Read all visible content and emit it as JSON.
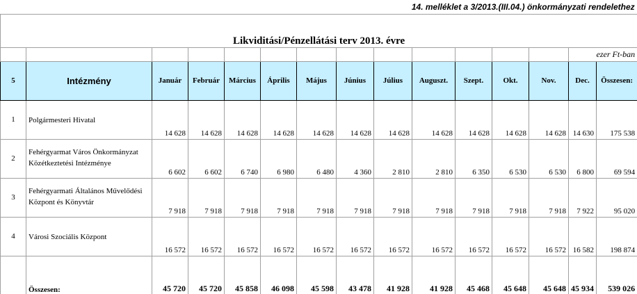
{
  "annex_note": "14. melléklet a 3/2013.(III.04.) önkormányzati rendelethez",
  "title": "Likviditási/Pénzellátási terv 2013. évre",
  "unit": "ezer Ft-ban",
  "header": {
    "index": "5",
    "institution": "Intézmény",
    "months": [
      "Január",
      "Február",
      "Március",
      "Április",
      "Május",
      "Június",
      "Július",
      "Auguszt.",
      "Szept.",
      "Okt.",
      "Nov.",
      "Dec."
    ],
    "total": "Összesen:"
  },
  "rows": [
    {
      "index": "1",
      "name": "Polgármesteri Hivatal",
      "values": [
        "14 628",
        "14 628",
        "14 628",
        "14 628",
        "14 628",
        "14 628",
        "14 628",
        "14 628",
        "14 628",
        "14 628",
        "14 628",
        "14 630"
      ],
      "total": "175 538"
    },
    {
      "index": "2",
      "name": "Fehérgyarmat Város Önkormányzat Közétkeztetési Intézménye",
      "values": [
        "6 602",
        "6 602",
        "6 740",
        "6 980",
        "6 480",
        "4 360",
        "2 810",
        "2 810",
        "6 350",
        "6 530",
        "6 530",
        "6 800"
      ],
      "total": "69 594"
    },
    {
      "index": "3",
      "name": "Fehérgyarmati Általános Művelődési Központ és Könyvtár",
      "values": [
        "7 918",
        "7 918",
        "7 918",
        "7 918",
        "7 918",
        "7 918",
        "7 918",
        "7 918",
        "7 918",
        "7 918",
        "7 918",
        "7 922"
      ],
      "total": "95 020"
    },
    {
      "index": "4",
      "name": "Városi Szociális Központ",
      "values": [
        "16 572",
        "16 572",
        "16 572",
        "16 572",
        "16 572",
        "16 572",
        "16 572",
        "16 572",
        "16 572",
        "16 572",
        "16 572",
        "16 582"
      ],
      "total": "198 874"
    }
  ],
  "totals": {
    "label": "Összesen:",
    "values": [
      "45 720",
      "45 720",
      "45 858",
      "46 098",
      "45 598",
      "43 478",
      "41 928",
      "41 928",
      "45 468",
      "45 648",
      "45 648",
      "45 934"
    ],
    "total": "539 026"
  },
  "colors": {
    "header_background": "#c6efff",
    "grid_line": "#a0a0a0"
  }
}
